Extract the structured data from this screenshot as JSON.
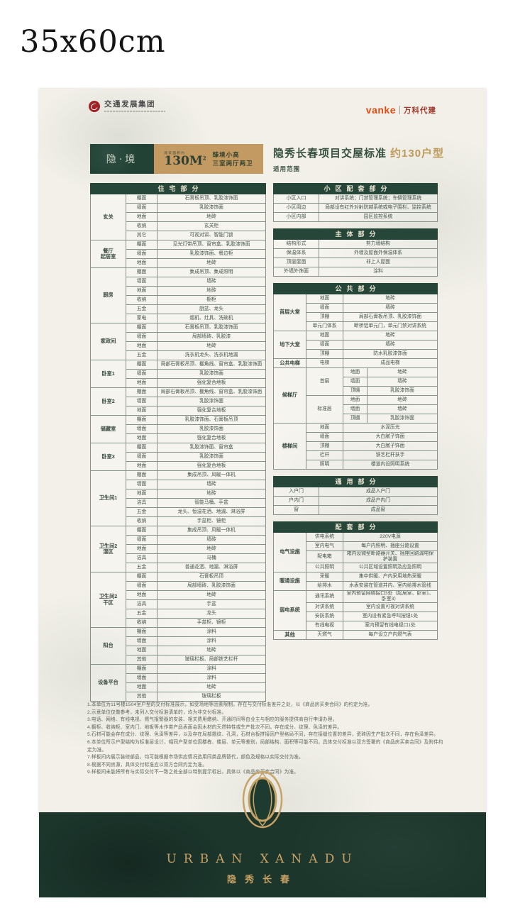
{
  "page_label": "35x60cm",
  "header": {
    "left_logo": {
      "name": "交通发展集团"
    },
    "right_logo": {
      "brand": "vanke",
      "text": "万科代建"
    }
  },
  "unit_card": {
    "name": "隐·境",
    "area_prefix": "建筑面积约",
    "area": "130M",
    "area_sup": "2",
    "desc_line1": "臻境小高",
    "desc_line2": "三室两厅两卫"
  },
  "title": {
    "main": "隐秀长春项目交屋标准",
    "highlight": "约130户型",
    "scope": "适用范围"
  },
  "colors": {
    "dark_green": "#26463a",
    "gold": "#c49a63",
    "paper": "#f2f0e9",
    "band_green": "#1c362c",
    "brand_red": "#a32125",
    "vanke_orange": "#e04a14"
  },
  "residence_table": {
    "name": "residence-table",
    "header": "住宅部分",
    "type": "sections",
    "cols": [
      50,
      44,
      0
    ],
    "sections": [
      {
        "room": "玄关",
        "rows": [
          [
            "棚面",
            "石膏板吊顶、乳胶漆饰面"
          ],
          [
            "墙面",
            "乳胶漆饰面"
          ],
          [
            "地面",
            "地砖"
          ],
          [
            "收纳",
            "玄关柜"
          ],
          [
            "其它",
            "可视对讲、智能门锁"
          ]
        ]
      },
      {
        "room": "餐厅\n起居室",
        "rows": [
          [
            "棚面",
            "见光灯带吊顶、窗帘盒、乳胶漆饰面"
          ],
          [
            "墙面",
            "乳胶漆饰面、餐边柜"
          ],
          [
            "地面",
            "地砖"
          ]
        ]
      },
      {
        "room": "厨房",
        "rows": [
          [
            "棚面",
            "集成吊顶、集成照明"
          ],
          [
            "墙面",
            "墙砖"
          ],
          [
            "地面",
            "地砖"
          ],
          [
            "收纳",
            "橱柜"
          ],
          [
            "五金",
            "厨盆、龙头"
          ],
          [
            "家电",
            "烟机、灶具、洗碗机"
          ]
        ]
      },
      {
        "room": "家政间",
        "rows": [
          [
            "棚面",
            "石膏板吊顶、乳胶漆饰面"
          ],
          [
            "墙面",
            "局部墙砖、乳胶漆"
          ],
          [
            "地面",
            "地砖"
          ],
          [
            "五金",
            "洗衣机龙头、洗衣机地漏"
          ]
        ]
      },
      {
        "room": "卧室1",
        "rows": [
          [
            "棚面",
            "局部石膏板吊顶、棚角线、窗帘盒、乳胶漆饰面"
          ],
          [
            "墙面",
            "乳胶漆饰面"
          ],
          [
            "地面",
            "强化复合地板"
          ]
        ]
      },
      {
        "room": "卧室2",
        "rows": [
          [
            "棚面",
            "局部石膏板吊顶、棚角线、窗帘盒、乳胶漆饰面"
          ],
          [
            "墙面",
            "乳胶漆饰面"
          ],
          [
            "地面",
            "强化复合地板"
          ]
        ]
      },
      {
        "room": "储藏室",
        "rows": [
          [
            "棚面",
            "乳胶漆饰面、石膏板吊顶"
          ],
          [
            "墙面",
            "乳胶漆饰面"
          ],
          [
            "地面",
            "强化复合地板"
          ]
        ]
      },
      {
        "room": "卧室3",
        "rows": [
          [
            "棚面",
            "乳胶漆饰面、窗帘盒"
          ],
          [
            "墙面",
            "乳胶漆饰面"
          ],
          [
            "地面",
            "强化复合地板"
          ]
        ]
      },
      {
        "room": "卫生间1",
        "rows": [
          [
            "棚面",
            "集成吊顶、风暖一体机"
          ],
          [
            "墙面",
            "墙砖"
          ],
          [
            "地面",
            "地砖"
          ],
          [
            "洁具",
            "智能马桶、手盆"
          ],
          [
            "五金",
            "龙头、恒温花洒、地漏、淋浴屏"
          ],
          [
            "收纳",
            "手盆柜、镜柜"
          ]
        ]
      },
      {
        "room": "卫生间2\n湿区",
        "rows": [
          [
            "棚面",
            "集成吊顶、风暖一体机"
          ],
          [
            "墙面",
            "墙砖"
          ],
          [
            "地面",
            "地砖"
          ],
          [
            "洁具",
            "马桶"
          ],
          [
            "五金",
            "普通花洒、地漏、淋浴屏"
          ]
        ]
      },
      {
        "room": "卫生间2\n干区",
        "rows": [
          [
            "棚面",
            "石膏板吊顶"
          ],
          [
            "墙面",
            "局部墙砖、乳胶漆饰面"
          ],
          [
            "地面",
            "地砖"
          ],
          [
            "洁具",
            "手盆"
          ],
          [
            "五金",
            "龙头"
          ],
          [
            "收纳",
            "手盆柜、镜柜"
          ]
        ]
      },
      {
        "room": "阳台",
        "rows": [
          [
            "棚面",
            "涂料"
          ],
          [
            "墙面",
            "涂料"
          ],
          [
            "地面",
            "地砖"
          ],
          [
            "其他",
            "玻璃栏板、局部铁艺栏杆"
          ]
        ]
      },
      {
        "room": "设备平台",
        "rows": [
          [
            "棚面",
            "涂料"
          ],
          [
            "墙面",
            "涂料"
          ],
          [
            "地面",
            "地砖"
          ],
          [
            "其他",
            "玻璃栏板"
          ]
        ]
      }
    ]
  },
  "right_tables": [
    {
      "name": "community-table",
      "header": "小区配套部分",
      "type": "kv",
      "cols": [
        64,
        0
      ],
      "rows": [
        [
          "小区入口",
          "对讲系统；门禁管理系统；车辆管理系统"
        ],
        [
          "小区周边",
          "局部设有红外对射防越系统或电子围栏、监控系统"
        ],
        [
          "小区内部",
          "园区监控系统"
        ]
      ]
    },
    {
      "name": "structure-table",
      "header": "主体部分",
      "type": "kv",
      "cols": [
        64,
        0
      ],
      "rows": [
        [
          "结构形式",
          "剪力墙结构"
        ],
        [
          "保温体系",
          "外墙及屋面外保温体系"
        ],
        [
          "顶层屋面",
          "非上人屋面"
        ],
        [
          "外墙外饰面",
          "涂料"
        ]
      ]
    },
    {
      "name": "public-table",
      "header": "公共部分",
      "type": "sections",
      "cols": [
        46,
        52,
        34,
        0
      ],
      "sections": [
        {
          "room": "首层大堂",
          "rows": [
            [
              "地面",
              "地砖"
            ],
            [
              "墙面",
              "墙砖"
            ],
            [
              "顶棚",
              "局部石膏板吊顶、乳胶漆饰面"
            ],
            [
              "单元门体系",
              "断桥铝单元门，单元门禁对讲系统"
            ]
          ]
        },
        {
          "room": "地下大堂",
          "rows": [
            [
              "地面",
              "地砖"
            ],
            [
              "墙面",
              "墙砖"
            ],
            [
              "顶棚",
              "防水乳胶漆饰面"
            ]
          ]
        },
        {
          "room": "公共电梯",
          "rows": [
            [
              "电梯",
              "成品电梯"
            ]
          ]
        },
        {
          "room": "候梯厅",
          "subs": [
            {
              "name": "首层",
              "rows": [
                [
                  "地面",
                  "地砖"
                ],
                [
                  "墙面",
                  "墙砖"
                ],
                [
                  "顶棚",
                  "乳胶漆饰面"
                ]
              ]
            },
            {
              "name": "标准层",
              "rows": [
                [
                  "地面",
                  "地砖"
                ],
                [
                  "墙面",
                  "墙砖"
                ],
                [
                  "顶棚",
                  "乳胶漆饰面"
                ]
              ]
            }
          ]
        },
        {
          "room": "楼梯间",
          "rows": [
            [
              "地面",
              "水泥压光"
            ],
            [
              "墙面",
              "大白腻子饰面"
            ],
            [
              "顶棚",
              "大白腻子饰面"
            ],
            [
              "栏杆",
              "铁艺栏杆扶手"
            ],
            [
              "照明",
              "楼道内设照明系统"
            ]
          ]
        }
      ]
    },
    {
      "name": "general-table",
      "header": "通用部分",
      "type": "kv",
      "cols": [
        64,
        0
      ],
      "rows": [
        [
          "入户门",
          "成品入户门"
        ],
        [
          "户内门",
          "成品户内门"
        ],
        [
          "窗",
          "成品窗"
        ]
      ]
    },
    {
      "name": "facilities-table",
      "header": "配套部分",
      "type": "sections",
      "cols": [
        46,
        52,
        0
      ],
      "sections": [
        {
          "room": "电气设施",
          "rows": [
            [
              "供电系统",
              "220V电源"
            ],
            [
              "室内电气",
              "每户内照明、插座分路设置"
            ],
            [
              "配电箱",
              "箱内设微型断路器开关、插座回路漏电保护装置"
            ],
            [
              "公共照明",
              "公共区域设置照明及应急照明"
            ]
          ]
        },
        {
          "room": "暖通设施",
          "rows": [
            [
              "采暖",
              "集中供暖、户内采用地热采暖"
            ],
            [
              "给排水",
              "水表安装在管道井内、室内给排水管线"
            ]
          ]
        },
        {
          "room": "弱电系统",
          "rows": [
            [
              "通讯系统",
              "室内预留网络接口3处（起居室、卧室1、卧室3）"
            ],
            [
              "对讲系统",
              "室内设置可视对讲系统"
            ],
            [
              "安防系统",
              "室内设有紧急呼叫按钮1处"
            ],
            [
              "有线电视",
              "室内预留有线电视口1处"
            ]
          ]
        },
        {
          "room": "其他",
          "rows": [
            [
              "天燃气",
              "每户设立户内燃气表"
            ]
          ]
        }
      ]
    }
  ],
  "footnotes": [
    "1.本单位为11号楼1504室户型的交付标准展示，如受场地等因素限制，存在与交付标准差异之处，以《商品房买卖合同》的约定为准。",
    "2.示意单位仅做参考，未列入交付标准清单的，均为非交付标准。",
    "3.电话、网络、有线电视、燃气报警器的安装、相关费用缴纳、开通时间等由业主与相应的服务提供商自行申请办理。",
    "4.橱柜、收纳柜、室内门、地板等木作类产品表面会因木材的天然特性或生产批次不同，存在成分、纹理、色泽的差异。",
    "5.石材可能会存在成分、纹理、色泽等差异，以及存在局部翘纹、孔洞，石材台板拼接因户型格局不同，存在接缝位置的差异，瓷砖因生产批次不同，存在色泽差异。",
    "6.本单位所示户型结构为标准层设计，相同户型单位因楼栋、楼层、单元等差别，局部结构、面积等可能不同，具体交付标准以双方签署的《商品房买卖合同》及附件约定为准。",
    "7.样板间内展示装修部品，均可能根据市场供应情况选用同类品牌替代，颜色及规格以实际交付为准。",
    "8.根据不同房源，具体交付标准应以双方合同约定为准。",
    "9.样板间未能将所有与实际交付不一致之处全部以特别提示标出，具体以《商品房买卖合同》为准。"
  ],
  "footer": {
    "en": "URBAN XANADU",
    "cn": "隐秀长春"
  }
}
